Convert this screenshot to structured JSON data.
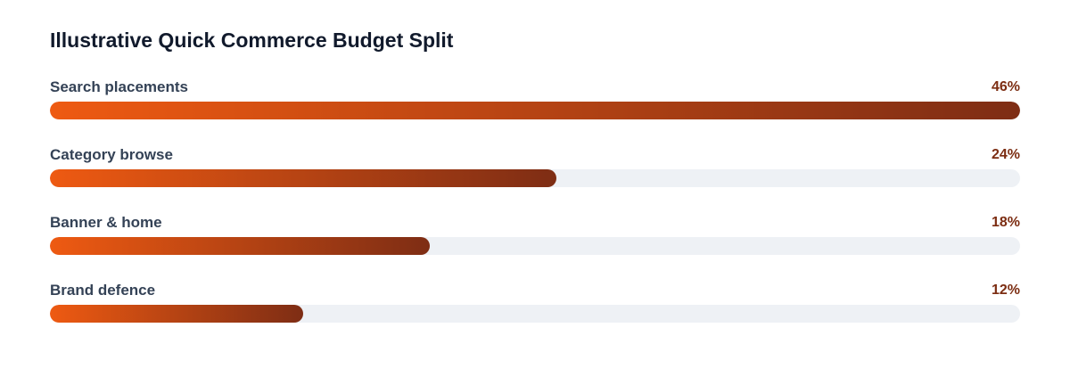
{
  "chart_data": {
    "type": "bar",
    "orientation": "horizontal",
    "title": "Illustrative Quick Commerce Budget Split",
    "categories": [
      "Search placements",
      "Category browse",
      "Banner & home",
      "Brand defence"
    ],
    "values": [
      46,
      24,
      18,
      12
    ],
    "value_labels": [
      "46%",
      "24%",
      "18%",
      "12%"
    ],
    "unit": "%",
    "xlim": [
      0,
      46
    ],
    "grid": false,
    "legend": "none",
    "colors": {
      "gradient_start": "#ee5a12",
      "gradient_end": "#7e2d14",
      "track": "#eef1f5",
      "value_label": "#7c2d12"
    }
  }
}
